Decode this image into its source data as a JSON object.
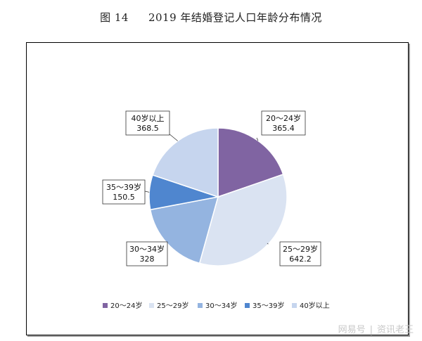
{
  "figure": {
    "number": "图 14",
    "title": "2019 年结婚登记人口年龄分布情况"
  },
  "chart_data": {
    "type": "pie",
    "title": "",
    "categories": [
      "20～24岁",
      "25～29岁",
      "30～34岁",
      "35～39岁",
      "40岁以上"
    ],
    "values": [
      365.4,
      642.2,
      328,
      150.5,
      368.5
    ],
    "colors": [
      "#8064a2",
      "#dae3f2",
      "#94b4e0",
      "#4f86cf",
      "#c6d5ee"
    ],
    "legend_position": "bottom",
    "data_labels": true
  },
  "watermark": {
    "brand": "网易号",
    "separator": "|",
    "author": "资讯老王"
  }
}
